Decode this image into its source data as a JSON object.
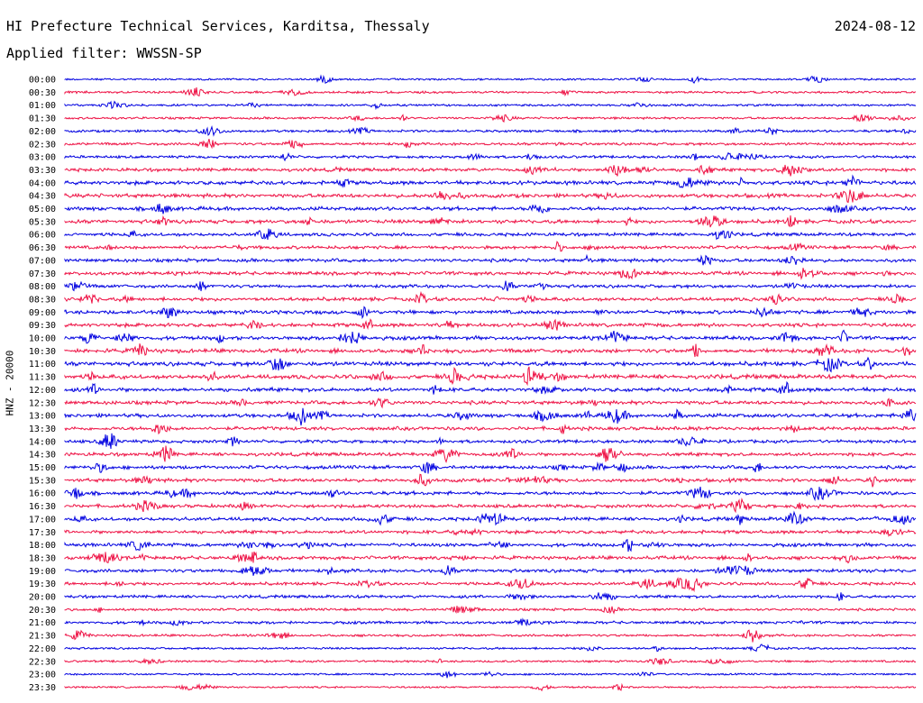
{
  "header": {
    "station": "HI Prefecture Technical Services, Karditsa, Thessaly",
    "date": "2024-08-12",
    "filter": "Applied filter: WWSSN-SP"
  },
  "chart_data": {
    "type": "line",
    "title": "HI Prefecture Technical Services, Karditsa, Thessaly",
    "ylabel": "HNZ - 20000",
    "colors": [
      "#0000e0",
      "#ee1144"
    ],
    "row_labels": [
      "00:00",
      "00:30",
      "01:00",
      "01:30",
      "02:00",
      "02:30",
      "03:00",
      "03:30",
      "04:00",
      "04:30",
      "05:00",
      "05:30",
      "06:00",
      "06:30",
      "07:00",
      "07:30",
      "08:00",
      "08:30",
      "09:00",
      "09:30",
      "10:00",
      "10:30",
      "11:00",
      "11:30",
      "12:00",
      "12:30",
      "13:00",
      "13:30",
      "14:00",
      "14:30",
      "15:00",
      "15:30",
      "16:00",
      "16:30",
      "17:00",
      "17:30",
      "18:00",
      "18:30",
      "19:00",
      "19:30",
      "20:00",
      "20:30",
      "21:00",
      "21:30",
      "22:00",
      "22:30",
      "23:00",
      "23:30"
    ],
    "row_noise": [
      0.25,
      0.35,
      0.35,
      0.35,
      0.45,
      0.5,
      0.5,
      0.7,
      0.9,
      0.9,
      0.85,
      0.85,
      0.7,
      0.7,
      0.75,
      0.8,
      0.7,
      0.8,
      0.85,
      0.85,
      0.85,
      0.95,
      1.0,
      1.0,
      0.9,
      0.85,
      0.85,
      0.8,
      0.65,
      0.75,
      0.75,
      0.8,
      0.8,
      0.75,
      0.8,
      0.75,
      0.75,
      0.8,
      0.75,
      0.65,
      0.6,
      0.45,
      0.55,
      0.4,
      0.3,
      0.3,
      0.25,
      0.2
    ]
  }
}
